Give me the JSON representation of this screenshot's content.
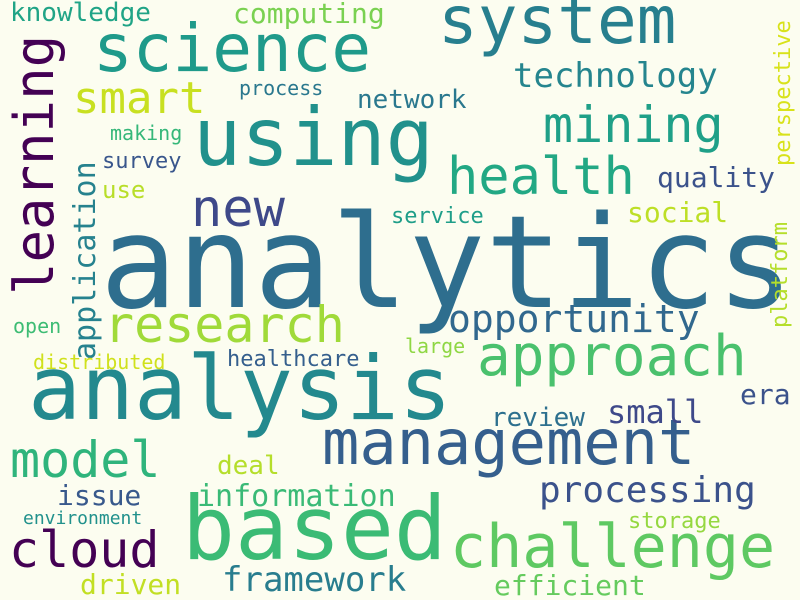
{
  "words": [
    {
      "id": "analytics",
      "text": "analytics",
      "color": "#2e6e8e"
    },
    {
      "id": "analysis",
      "text": "analysis",
      "color": "#23898e"
    },
    {
      "id": "management",
      "text": "management",
      "color": "#355f8d"
    },
    {
      "id": "based",
      "text": "based",
      "color": "#3bbb75"
    },
    {
      "id": "using",
      "text": "using",
      "color": "#21918c"
    },
    {
      "id": "science",
      "text": "science",
      "color": "#1f9a8a"
    },
    {
      "id": "system",
      "text": "system",
      "color": "#277f8e"
    },
    {
      "id": "challenge",
      "text": "challenge",
      "color": "#5ec962"
    },
    {
      "id": "approach",
      "text": "approach",
      "color": "#4ac16d"
    },
    {
      "id": "research",
      "text": "research",
      "color": "#a0da39"
    },
    {
      "id": "learning",
      "text": "learning",
      "color": "#440154"
    },
    {
      "id": "cloud",
      "text": "cloud",
      "color": "#440154"
    },
    {
      "id": "new",
      "text": "new",
      "color": "#3e4989"
    },
    {
      "id": "mining",
      "text": "mining",
      "color": "#1fa088"
    },
    {
      "id": "health",
      "text": "health",
      "color": "#22a884"
    },
    {
      "id": "model",
      "text": "model",
      "color": "#2fb47c"
    },
    {
      "id": "smart",
      "text": "smart",
      "color": "#c8e020"
    },
    {
      "id": "opportunity",
      "text": "opportunity",
      "color": "#31688e"
    },
    {
      "id": "processing",
      "text": "processing",
      "color": "#3b528b"
    },
    {
      "id": "technology",
      "text": "technology",
      "color": "#25858e"
    },
    {
      "id": "framework",
      "text": "framework",
      "color": "#287d8e"
    },
    {
      "id": "information",
      "text": "information",
      "color": "#3aba76"
    },
    {
      "id": "small",
      "text": "small",
      "color": "#3e4989"
    },
    {
      "id": "review",
      "text": "review",
      "color": "#2d708e"
    },
    {
      "id": "application",
      "text": "application",
      "color": "#26828e"
    },
    {
      "id": "efficient",
      "text": "efficient",
      "color": "#65cb5e"
    },
    {
      "id": "driven",
      "text": "driven",
      "color": "#c2df23"
    },
    {
      "id": "quality",
      "text": "quality",
      "color": "#3b528b"
    },
    {
      "id": "social",
      "text": "social",
      "color": "#bddf26"
    },
    {
      "id": "computing",
      "text": "computing",
      "color": "#7ad151"
    },
    {
      "id": "knowledge",
      "text": "knowledge",
      "color": "#20a486"
    },
    {
      "id": "network",
      "text": "network",
      "color": "#2a788e"
    },
    {
      "id": "issue",
      "text": "issue",
      "color": "#38598c"
    },
    {
      "id": "deal",
      "text": "deal",
      "color": "#b5de2b"
    },
    {
      "id": "era",
      "text": "era",
      "color": "#3b528b"
    },
    {
      "id": "perspective",
      "text": "perspective",
      "color": "#d8e219"
    },
    {
      "id": "healthcare",
      "text": "healthcare",
      "color": "#355f8d"
    },
    {
      "id": "service",
      "text": "service",
      "color": "#1f9e89"
    },
    {
      "id": "platform",
      "text": "platform",
      "color": "#b5de2b"
    },
    {
      "id": "storage",
      "text": "storage",
      "color": "#95d840"
    },
    {
      "id": "use",
      "text": "use",
      "color": "#b8de29"
    },
    {
      "id": "survey",
      "text": "survey",
      "color": "#39568c"
    },
    {
      "id": "making",
      "text": "making",
      "color": "#35b779"
    },
    {
      "id": "process",
      "text": "process",
      "color": "#2a788e"
    },
    {
      "id": "large",
      "text": "large",
      "color": "#8fd744"
    },
    {
      "id": "open",
      "text": "open",
      "color": "#3dbc74"
    },
    {
      "id": "distributed",
      "text": "distributed",
      "color": "#d0e11c"
    },
    {
      "id": "environment",
      "text": "environment",
      "color": "#21918c"
    }
  ]
}
